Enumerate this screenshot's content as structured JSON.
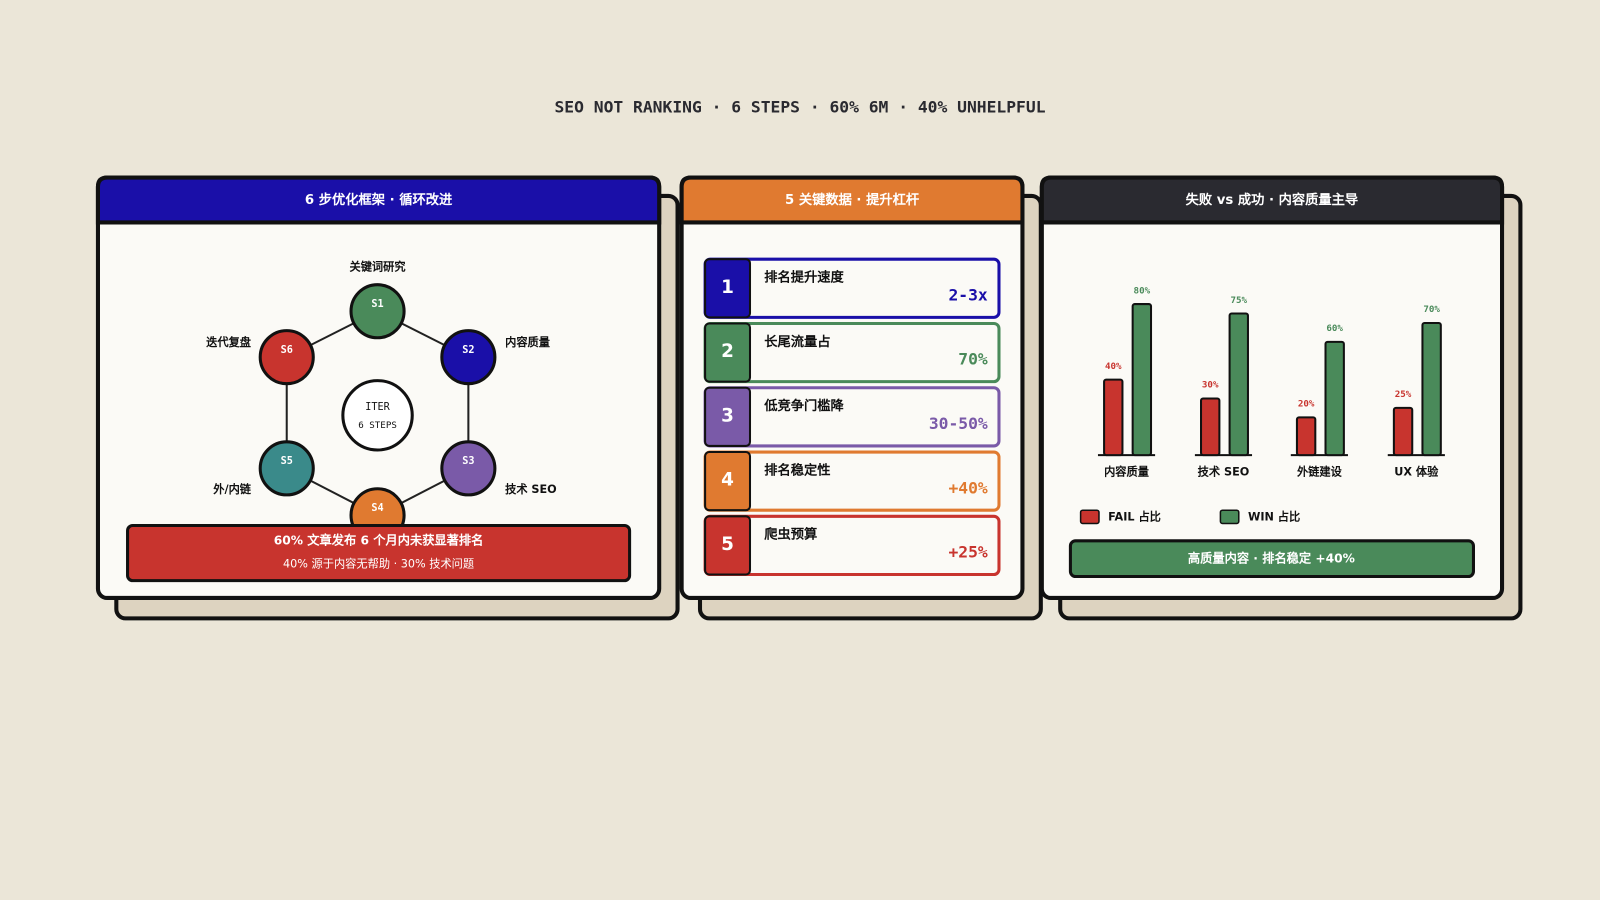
{
  "title": "SEO NOT RANKING · 6 STEPS · 60% 6M · 40% UNHELPFUL",
  "framework": {
    "header": "6 步优化框架 · 循环改进",
    "center": [
      "ITER",
      "6 STEPS"
    ],
    "nodes": [
      {
        "id": "S1",
        "label": "关键词研究",
        "color": "#4a8a5a"
      },
      {
        "id": "S2",
        "label": "内容质量",
        "color": "#1a0fa8"
      },
      {
        "id": "S3",
        "label": "技术 SEO",
        "color": "#7a5aa8"
      },
      {
        "id": "S4",
        "color": "#e07a30"
      },
      {
        "id": "S5",
        "label": "外/内链",
        "color": "#3a8a8a"
      },
      {
        "id": "S6",
        "label": "迭代复盘",
        "color": "#c8342e"
      }
    ],
    "banner": [
      "60% 文章发布 6 个月内未获显著排名",
      "40% 源于内容无帮助 · 30% 技术问题"
    ]
  },
  "metrics": {
    "header": "5 关键数据 · 提升杠杆",
    "items": [
      {
        "number": "1",
        "label": "排名提升速度",
        "value": "2-3x",
        "color": "#1a0fa8"
      },
      {
        "number": "2",
        "label": "长尾流量占",
        "value": "70%",
        "color": "#4a8a5a"
      },
      {
        "number": "3",
        "label": "低竞争门槛降",
        "value": "30-50%",
        "color": "#7a5aa8"
      },
      {
        "number": "4",
        "label": "排名稳定性",
        "value": "+40%",
        "color": "#e07a30"
      },
      {
        "number": "5",
        "label": "爬虫预算",
        "value": "+25%",
        "color": "#c8342e"
      }
    ]
  },
  "chart_data": {
    "type": "bar",
    "title": "失败 vs 成功 · 内容质量主导",
    "categories": [
      "内容质量",
      "技术 SEO",
      "外链建设",
      "UX 体验"
    ],
    "series": [
      {
        "name": "FAIL 占比",
        "color": "#c8342e",
        "values": [
          40,
          30,
          20,
          25
        ],
        "value_labels": [
          "40%",
          "30%",
          "20%",
          "25%"
        ]
      },
      {
        "name": "WIN 占比",
        "color": "#4a8a5a",
        "values": [
          80,
          75,
          60,
          70
        ],
        "value_labels": [
          "80%",
          "75%",
          "60%",
          "70%"
        ]
      }
    ],
    "annotation": "高质量内容 · 排名稳定 +40%"
  }
}
